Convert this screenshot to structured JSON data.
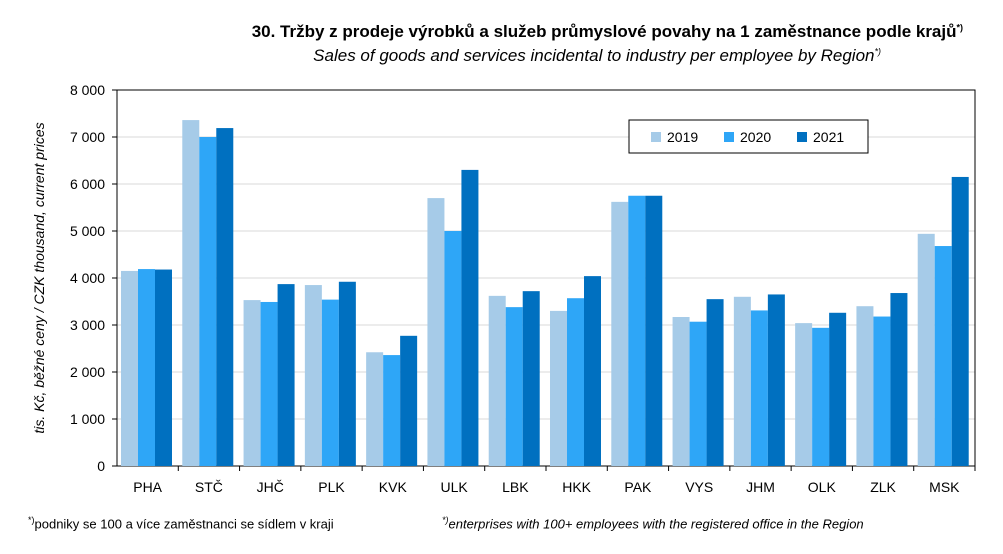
{
  "chart_data": {
    "type": "bar",
    "title": "30. Tržby z prodeje výrobků a služeb průmyslové povahy na 1 zaměstnance podle krajů",
    "title_mark": "*)",
    "subtitle": "Sales of goods and services incidental to industry per employee by Region",
    "ylabel": "tis. Kč, běžné ceny / CZK thousand, current prices",
    "xlabel": "",
    "ylim": [
      0,
      8000
    ],
    "yticks": [
      0,
      1000,
      2000,
      3000,
      4000,
      5000,
      6000,
      7000,
      8000
    ],
    "ytick_labels": [
      "0",
      "1 000",
      "2 000",
      "3 000",
      "4 000",
      "5 000",
      "6 000",
      "7 000",
      "8 000"
    ],
    "grid": true,
    "legend_position": "top-right",
    "categories": [
      "PHA",
      "STČ",
      "JHČ",
      "PLK",
      "KVK",
      "ULK",
      "LBK",
      "HKK",
      "PAK",
      "VYS",
      "JHM",
      "OLK",
      "ZLK",
      "MSK"
    ],
    "series": [
      {
        "name": "2019",
        "color": "#a6cbe8",
        "values": [
          4150,
          7360,
          3530,
          3850,
          2420,
          5700,
          3620,
          3300,
          5620,
          3170,
          3600,
          3040,
          3400,
          4940
        ]
      },
      {
        "name": "2020",
        "color": "#2ea6f7",
        "values": [
          4190,
          7000,
          3490,
          3540,
          2360,
          5000,
          3380,
          3570,
          5750,
          3070,
          3310,
          2940,
          3180,
          4680
        ]
      },
      {
        "name": "2021",
        "color": "#0070c0",
        "values": [
          4180,
          7190,
          3870,
          3920,
          2770,
          6300,
          3720,
          4040,
          5750,
          3550,
          3650,
          3260,
          3680,
          6150
        ]
      }
    ]
  },
  "footnote_cz": "podniky se 100 a více zaměstnanci se sídlem v kraji",
  "footnote_en": "enterprises with 100+ employees with the registered office in the Region",
  "footnote_mark": "*)"
}
